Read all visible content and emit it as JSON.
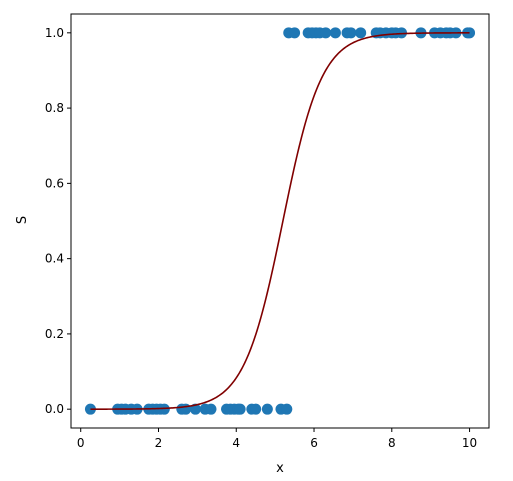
{
  "chart_data": {
    "type": "scatter",
    "xlabel": "x",
    "ylabel": "S",
    "xlim": [
      -0.25,
      10.5
    ],
    "ylim": [
      -0.05,
      1.05
    ],
    "xticks": [
      0,
      2,
      4,
      6,
      8,
      10
    ],
    "yticks": [
      0.0,
      0.2,
      0.4,
      0.6,
      0.8,
      1.0
    ],
    "xtick_labels": [
      "0",
      "2",
      "4",
      "6",
      "8",
      "10"
    ],
    "ytick_labels": [
      "0.0",
      "0.2",
      "0.4",
      "0.6",
      "0.8",
      "1.0"
    ],
    "grid": false,
    "series": [
      {
        "type": "scatter",
        "color": "#1f77b4",
        "points": [
          {
            "x": 0.25,
            "y": 0
          },
          {
            "x": 0.95,
            "y": 0
          },
          {
            "x": 1.05,
            "y": 0
          },
          {
            "x": 1.15,
            "y": 0
          },
          {
            "x": 1.3,
            "y": 0
          },
          {
            "x": 1.45,
            "y": 0
          },
          {
            "x": 1.75,
            "y": 0
          },
          {
            "x": 1.85,
            "y": 0
          },
          {
            "x": 1.95,
            "y": 0
          },
          {
            "x": 2.05,
            "y": 0
          },
          {
            "x": 2.15,
            "y": 0
          },
          {
            "x": 2.6,
            "y": 0
          },
          {
            "x": 2.7,
            "y": 0
          },
          {
            "x": 2.95,
            "y": 0
          },
          {
            "x": 3.2,
            "y": 0
          },
          {
            "x": 3.35,
            "y": 0
          },
          {
            "x": 3.75,
            "y": 0
          },
          {
            "x": 3.85,
            "y": 0
          },
          {
            "x": 3.95,
            "y": 0
          },
          {
            "x": 4.05,
            "y": 0
          },
          {
            "x": 4.1,
            "y": 0
          },
          {
            "x": 4.4,
            "y": 0
          },
          {
            "x": 4.5,
            "y": 0
          },
          {
            "x": 4.8,
            "y": 0
          },
          {
            "x": 5.15,
            "y": 0
          },
          {
            "x": 5.3,
            "y": 0
          },
          {
            "x": 5.35,
            "y": 1
          },
          {
            "x": 5.5,
            "y": 1
          },
          {
            "x": 5.85,
            "y": 1
          },
          {
            "x": 5.95,
            "y": 1
          },
          {
            "x": 6.05,
            "y": 1
          },
          {
            "x": 6.15,
            "y": 1
          },
          {
            "x": 6.3,
            "y": 1
          },
          {
            "x": 6.55,
            "y": 1
          },
          {
            "x": 6.85,
            "y": 1
          },
          {
            "x": 6.95,
            "y": 1
          },
          {
            "x": 7.2,
            "y": 1
          },
          {
            "x": 7.6,
            "y": 1
          },
          {
            "x": 7.7,
            "y": 1
          },
          {
            "x": 7.85,
            "y": 1
          },
          {
            "x": 8.0,
            "y": 1
          },
          {
            "x": 8.1,
            "y": 1
          },
          {
            "x": 8.25,
            "y": 1
          },
          {
            "x": 8.75,
            "y": 1
          },
          {
            "x": 9.1,
            "y": 1
          },
          {
            "x": 9.25,
            "y": 1
          },
          {
            "x": 9.4,
            "y": 1
          },
          {
            "x": 9.5,
            "y": 1
          },
          {
            "x": 9.65,
            "y": 1
          },
          {
            "x": 9.95,
            "y": 1
          },
          {
            "x": 10.0,
            "y": 1
          }
        ]
      },
      {
        "type": "line",
        "color": "#800000",
        "function": "logistic",
        "midpoint": 5.2,
        "steepness": 2.0,
        "x_range": [
          0.25,
          10.0
        ]
      }
    ]
  }
}
